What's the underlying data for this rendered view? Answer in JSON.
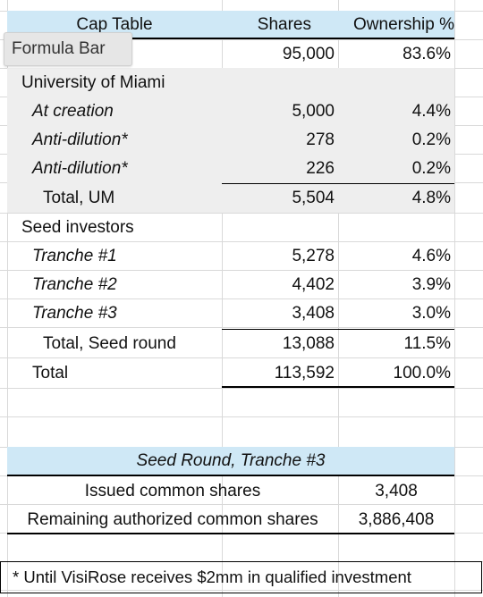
{
  "tooltip": {
    "label": "Formula Bar"
  },
  "cap_table": {
    "headers": {
      "title": "Cap Table",
      "shares": "Shares",
      "ownership": "Ownership %"
    },
    "founder_row": {
      "shares": "95,000",
      "ownership": "83.6%"
    },
    "um": {
      "label": "University of Miami",
      "rows": [
        {
          "label": "At creation",
          "shares": "5,000",
          "ownership": "4.4%"
        },
        {
          "label": "Anti-dilution*",
          "shares": "278",
          "ownership": "0.2%"
        },
        {
          "label": "Anti-dilution*",
          "shares": "226",
          "ownership": "0.2%"
        }
      ],
      "total": {
        "label": "Total, UM",
        "shares": "5,504",
        "ownership": "4.8%"
      }
    },
    "seed": {
      "label": "Seed investors",
      "rows": [
        {
          "label": "Tranche #1",
          "shares": "5,278",
          "ownership": "4.6%"
        },
        {
          "label": "Tranche #2",
          "shares": "4,402",
          "ownership": "3.9%"
        },
        {
          "label": "Tranche #3",
          "shares": "3,408",
          "ownership": "3.0%"
        }
      ],
      "total": {
        "label": "Total, Seed round",
        "shares": "13,088",
        "ownership": "11.5%"
      }
    },
    "grand_total": {
      "label": "Total",
      "shares": "113,592",
      "ownership": "100.0%"
    }
  },
  "seed_tranche": {
    "title": "Seed Round, Tranche #3",
    "issued": {
      "label": "Issued common shares",
      "value": "3,408"
    },
    "remaining": {
      "label": "Remaining authorized common shares",
      "value": "3,886,408"
    }
  },
  "footnote": "* Until VisiRose receives $2mm in qualified investment",
  "colors": {
    "header_fill": "#cfe8f6",
    "section_fill": "#eeeeee",
    "gridline": "#d9d9d9"
  }
}
